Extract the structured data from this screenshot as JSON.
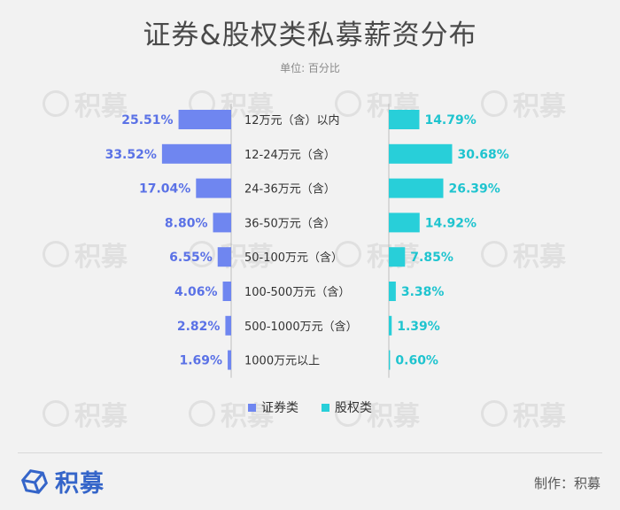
{
  "header": {
    "title": "证券&股权类私募薪资分布",
    "unit": "单位: 百分比"
  },
  "watermark": {
    "text": "积募"
  },
  "footer": {
    "brand": "积募",
    "credit": "制作：积募"
  },
  "colors": {
    "left": "#6f86f0",
    "right": "#28cfd9",
    "left_label": "#5b72e6",
    "right_label": "#1fc4cf"
  },
  "chart_data": {
    "type": "bar",
    "orientation": "horizontal-butterfly",
    "categories": [
      "12万元（含）以内",
      "12-24万元（含）",
      "24-36万元（含）",
      "36-50万元（含）",
      "50-100万元（含）",
      "100-500万元（含）",
      "500-1000万元（含）",
      "1000万元以上"
    ],
    "series": [
      {
        "name": "证券类",
        "side": "left",
        "values": [
          25.51,
          33.52,
          17.04,
          8.8,
          6.55,
          4.06,
          2.82,
          1.69
        ],
        "labels": [
          "25.51%",
          "33.52%",
          "17.04%",
          "8.80%",
          "6.55%",
          "4.06%",
          "2.82%",
          "1.69%"
        ]
      },
      {
        "name": "股权类",
        "side": "right",
        "values": [
          14.79,
          30.68,
          26.39,
          14.92,
          7.85,
          3.38,
          1.39,
          0.6
        ],
        "labels": [
          "14.79%",
          "30.68%",
          "26.39%",
          "14.92%",
          "7.85%",
          "3.38%",
          "1.39%",
          "0.60%"
        ]
      }
    ],
    "title": "证券&股权类私募薪资分布",
    "ylabel": "单位: 百分比",
    "legend": "bottom-center",
    "grid": false
  }
}
